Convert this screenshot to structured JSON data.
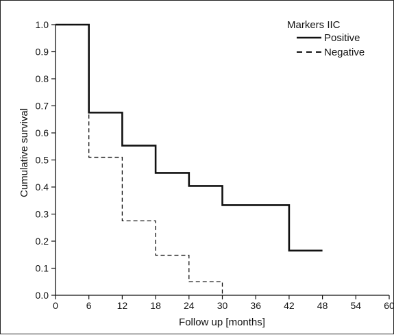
{
  "chart_data": {
    "type": "line",
    "subtype": "kaplan-meier step plot",
    "xlabel": "Follow up [months]",
    "ylabel": "Cumulative survival",
    "xlim": [
      0,
      60
    ],
    "ylim": [
      0,
      1.0
    ],
    "xticks": [
      "0",
      "6",
      "12",
      "18",
      "24",
      "30",
      "36",
      "42",
      "48",
      "54",
      "60"
    ],
    "yticks": [
      "0.0",
      "0.1",
      "0.2",
      "0.3",
      "0.4",
      "0.5",
      "0.6",
      "0.7",
      "0.8",
      "0.9",
      "1.0"
    ],
    "grid": false,
    "legend": {
      "title": "Markers IIC",
      "position": "top-right"
    },
    "series": [
      {
        "name": "Positive",
        "line_style": "solid",
        "color": "#111111",
        "x": [
          0,
          6,
          12,
          18,
          24,
          30,
          42,
          48
        ],
        "y": [
          1.0,
          0.675,
          0.553,
          0.452,
          0.404,
          0.333,
          0.165,
          0.165
        ]
      },
      {
        "name": "Negative",
        "line_style": "dashed",
        "color": "#111111",
        "x": [
          0,
          6,
          12,
          18,
          24,
          30,
          30
        ],
        "y": [
          1.0,
          0.51,
          0.275,
          0.148,
          0.05,
          0.05,
          0.0
        ]
      }
    ]
  }
}
